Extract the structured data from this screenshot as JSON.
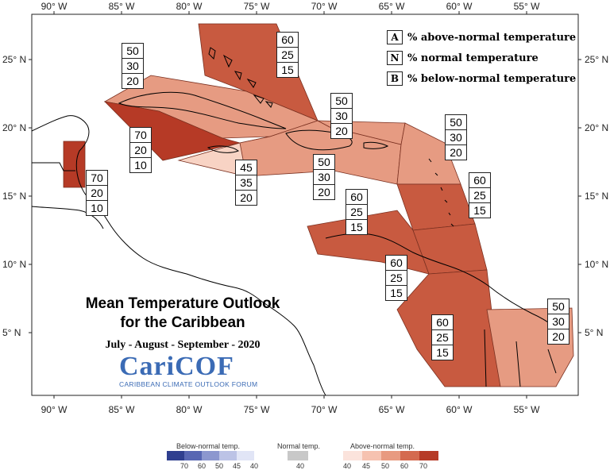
{
  "axes": {
    "top_lon": [
      "90° W",
      "85° W",
      "80° W",
      "75° W",
      "70° W",
      "65° W",
      "60° W",
      "55° W"
    ],
    "bottom_lon": [
      "90° W",
      "85° W",
      "80° W",
      "75° W",
      "70° W",
      "65° W",
      "60° W",
      "55° W"
    ],
    "left_lat": [
      "25° N",
      "20° N",
      "15° N",
      "10° N",
      "5° N"
    ],
    "right_lat": [
      "25° N",
      "20° N",
      "15° N",
      "10° N",
      "5° N"
    ]
  },
  "legend": {
    "above": {
      "key": "A",
      "text": "% above-normal temperature"
    },
    "normal": {
      "key": "N",
      "text": "% normal temperature"
    },
    "below": {
      "key": "B",
      "text": "% below-normal temperature"
    }
  },
  "title": {
    "line1": "Mean Temperature Outlook",
    "line2": "for the Caribbean",
    "line3": "July - August - September - 2020"
  },
  "logo": {
    "name": "CariCOF",
    "subtitle": "CARIBBEAN CLIMATE OUTLOOK FORUM"
  },
  "probabilities": [
    {
      "id": "bahamas",
      "a": "60",
      "n": "25",
      "b": "15"
    },
    {
      "id": "cuba-north",
      "a": "50",
      "n": "30",
      "b": "20"
    },
    {
      "id": "cayman",
      "a": "70",
      "n": "20",
      "b": "10"
    },
    {
      "id": "belize",
      "a": "70",
      "n": "20",
      "b": "10"
    },
    {
      "id": "jamaica",
      "a": "45",
      "n": "35",
      "b": "20"
    },
    {
      "id": "hispaniola",
      "a": "50",
      "n": "30",
      "b": "20"
    },
    {
      "id": "turks",
      "a": "50",
      "n": "30",
      "b": "20"
    },
    {
      "id": "leewards",
      "a": "50",
      "n": "30",
      "b": "20"
    },
    {
      "id": "windwards",
      "a": "60",
      "n": "25",
      "b": "15"
    },
    {
      "id": "abc-islands",
      "a": "60",
      "n": "25",
      "b": "15"
    },
    {
      "id": "trinidad",
      "a": "60",
      "n": "25",
      "b": "15"
    },
    {
      "id": "guyana",
      "a": "60",
      "n": "25",
      "b": "15"
    },
    {
      "id": "suriname",
      "a": "50",
      "n": "30",
      "b": "20"
    }
  ],
  "colorbar": {
    "below_title": "Below-normal temp.",
    "normal_title": "Normal temp.",
    "above_title": "Above-normal temp.",
    "below_labels": [
      "70",
      "60",
      "50",
      "45",
      "40"
    ],
    "normal_labels": [
      "40"
    ],
    "above_labels": [
      "40",
      "45",
      "50",
      "60",
      "70"
    ],
    "below_colors": [
      "#2f3f8f",
      "#5867b3",
      "#8c97cf",
      "#bcc3e6",
      "#e1e5f6"
    ],
    "normal_color": "#c8c8c8",
    "above_colors": [
      "#fbe3dc",
      "#f6c2b0",
      "#e89a80",
      "#d46a4f",
      "#b63a26"
    ]
  },
  "region_colors": {
    "a70": "#b63a26",
    "a60": "#c85a40",
    "a50": "#e69b82",
    "a45": "#f8d3c4"
  }
}
